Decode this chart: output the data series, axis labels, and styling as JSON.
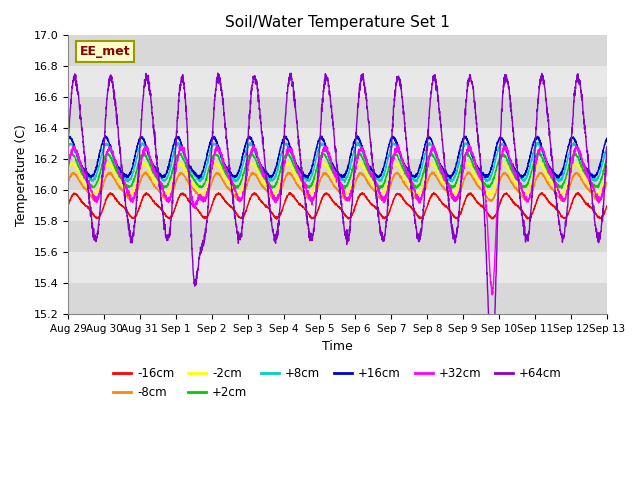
{
  "title": "Soil/Water Temperature Set 1",
  "xlabel": "Time",
  "ylabel": "Temperature (C)",
  "ylim": [
    15.2,
    17.0
  ],
  "annotation": "EE_met",
  "series": [
    {
      "label": "-16cm",
      "color": "#ff0000",
      "base": 15.9,
      "amp": 0.07,
      "phase": 0.0,
      "amp2": 0.02
    },
    {
      "label": "-8cm",
      "color": "#ff8800",
      "base": 16.02,
      "amp": 0.08,
      "phase": 0.3,
      "amp2": 0.02
    },
    {
      "label": "-2cm",
      "color": "#ffff00",
      "base": 16.07,
      "amp": 0.09,
      "phase": 0.5,
      "amp2": 0.02
    },
    {
      "label": "+2cm",
      "color": "#00cc00",
      "base": 16.12,
      "amp": 0.1,
      "phase": 0.7,
      "amp2": 0.02
    },
    {
      "label": "+8cm",
      "color": "#00cccc",
      "base": 16.17,
      "amp": 0.11,
      "phase": 0.9,
      "amp2": 0.025
    },
    {
      "label": "+16cm",
      "color": "#0000cc",
      "base": 16.2,
      "amp": 0.12,
      "phase": 1.1,
      "amp2": 0.025
    },
    {
      "label": "+32cm",
      "color": "#ff00ff",
      "base": 16.1,
      "amp": 0.15,
      "phase": 0.2,
      "amp2": 0.04
    },
    {
      "label": "+64cm",
      "color": "#8800cc",
      "base": 16.2,
      "amp": 0.5,
      "phase": 0.15,
      "amp2": 0.1
    }
  ],
  "tick_labels": [
    "Aug 29",
    "Aug 30",
    "Aug 31",
    "Sep 1",
    "Sep 2",
    "Sep 3",
    "Sep 4",
    "Sep 5",
    "Sep 6",
    "Sep 7",
    "Sep 8",
    "Sep 9",
    "Sep 10",
    "Sep 11",
    "Sep 12",
    "Sep 13"
  ],
  "figsize": [
    6.4,
    4.8
  ],
  "dpi": 100
}
